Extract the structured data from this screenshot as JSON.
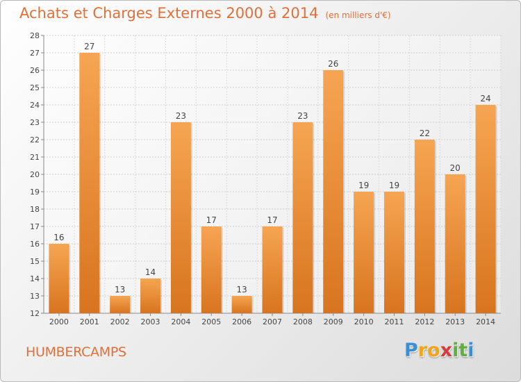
{
  "chart_data": {
    "type": "bar",
    "title": "Achats et Charges Externes 2000 à 2014",
    "subtitle": "(en milliers d'€)",
    "categories": [
      "2000",
      "2001",
      "2002",
      "2003",
      "2004",
      "2005",
      "2006",
      "2007",
      "2008",
      "2009",
      "2010",
      "2011",
      "2012",
      "2013",
      "2014"
    ],
    "values": [
      16,
      27,
      13,
      14,
      23,
      17,
      13,
      17,
      23,
      26,
      19,
      19,
      22,
      20,
      24
    ],
    "ylim": [
      12,
      28
    ],
    "yticks": [
      12,
      13,
      14,
      15,
      16,
      17,
      18,
      19,
      20,
      21,
      22,
      23,
      24,
      25,
      26,
      27,
      28
    ],
    "grid": true,
    "bar_color": "#f08c32"
  },
  "footer": {
    "place": "HUMBERCAMPS",
    "logo_letters": [
      {
        "t": "P",
        "color": "#3a8fd6"
      },
      {
        "t": "r",
        "color": "#f2a51c"
      },
      {
        "t": "o",
        "color": "#f2a51c"
      },
      {
        "t": "x",
        "color": "#d63a3a"
      },
      {
        "t": "i",
        "color": "#5cb23c"
      },
      {
        "t": "t",
        "color": "#5cb23c"
      },
      {
        "t": "i",
        "color": "#3a8fd6"
      }
    ]
  }
}
